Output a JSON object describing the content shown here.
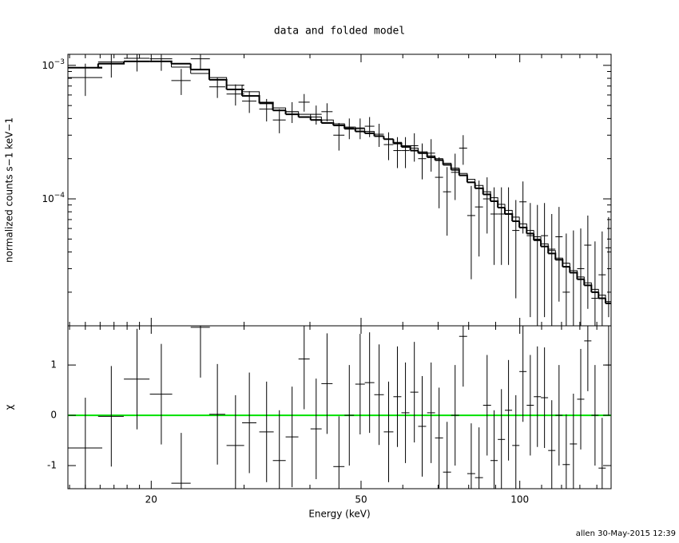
{
  "chart_data": {
    "type": "errorbar",
    "title": "data and folded model",
    "xlabel": "Energy (keV)",
    "ylabel": "normalized counts s−1 keV−1",
    "residual_ylabel": "χ",
    "footer": "allen 30-May-2015 12:39",
    "xscale": "log",
    "yscale": "log",
    "color": "#000000",
    "xlim": [
      13.9,
      149
    ],
    "xticks": [
      20,
      50,
      100
    ],
    "xminorticks": [
      14,
      15,
      16,
      17,
      18,
      19,
      30,
      40,
      60,
      70,
      80,
      90,
      110,
      120,
      130,
      140
    ],
    "ylim": [
      1.12e-05,
      0.00121
    ],
    "yticks": [
      {
        "value": 0.001,
        "label": "10−3"
      },
      {
        "value": 0.0001,
        "label": "10−4"
      }
    ],
    "yminorticks": [
      2e-05,
      3e-05,
      4e-05,
      5e-05,
      6e-05,
      7e-05,
      8e-05,
      9e-05,
      0.0002,
      0.0003,
      0.0004,
      0.0005,
      0.0006,
      0.0007,
      0.0008,
      0.0009
    ],
    "residual_ylim": [
      -1.46,
      1.78
    ],
    "residual_yticks": [
      1,
      0,
      -1
    ],
    "reference_line": {
      "value": 0,
      "color": "#00e000"
    },
    "x": [
      15.0,
      16.8,
      18.8,
      20.9,
      22.8,
      24.8,
      26.7,
      28.9,
      30.7,
      33.1,
      35.0,
      37.0,
      39.0,
      41.1,
      43.1,
      45.4,
      47.5,
      49.8,
      51.9,
      54.1,
      56.4,
      58.6,
      60.7,
      63.1,
      65.3,
      67.9,
      70.3,
      72.8,
      75.4,
      78.1,
      80.9,
      83.7,
      86.7,
      89.4,
      92.3,
      95.2,
      98.3,
      101.4,
      104.7,
      108,
      111.4,
      115,
      118.7,
      122.5,
      126.4,
      130.5,
      134.6,
      138.9,
      143.3,
      147.4
    ],
    "xerr": [
      1.15,
      0.94,
      1.05,
      1.02,
      0.96,
      1.04,
      0.93,
      1.11,
      0.96,
      1.04,
      0.98,
      1.03,
      0.95,
      1.0,
      1.05,
      1.1,
      0.99,
      1.04,
      1.09,
      1.13,
      1.18,
      1.02,
      1.06,
      1.1,
      1.14,
      1.18,
      1.23,
      1.27,
      1.32,
      1.36,
      1.41,
      1.46,
      1.51,
      1.4,
      1.45,
      1.5,
      1.54,
      1.59,
      1.64,
      1.7,
      1.75,
      1.8,
      1.86,
      1.92,
      1.98,
      2.05,
      2.11,
      2.18,
      2.25,
      2.0
    ],
    "values": [
      0.00081,
      0.00106,
      0.00113,
      0.00112,
      0.00077,
      0.00112,
      0.00069,
      0.00061,
      0.00054,
      0.00047,
      0.00039,
      0.00045,
      0.00053,
      0.00043,
      0.00045,
      0.0003,
      0.00034,
      0.00034,
      0.00035,
      0.000305,
      0.000255,
      0.00023,
      0.00023,
      0.00025,
      0.0002,
      0.00022,
      0.000145,
      0.000113,
      0.000158,
      0.00024,
      7.5e-05,
      8.7e-05,
      0.0001,
      7.7e-05,
      7.7e-05,
      7.7e-05,
      5.8e-05,
      9.5e-05,
      5.3e-05,
      5e-05,
      5.3e-05,
      4.2e-05,
      5.2e-05,
      2e-05,
      2.8e-05,
      3e-05,
      4.5e-05,
      1.8e-05,
      2.7e-05,
      4.3e-05
    ],
    "yerr": [
      0.00022,
      0.00025,
      0.00023,
      0.00021,
      0.00017,
      0.0002,
      0.00012,
      0.00011,
      0.0001,
      9e-05,
      8e-05,
      8e-05,
      8e-05,
      7e-05,
      7e-05,
      7e-05,
      6e-05,
      6e-05,
      6e-05,
      6e-05,
      6e-05,
      6e-05,
      6e-05,
      6e-05,
      6e-05,
      6e-05,
      6e-05,
      6e-05,
      6e-05,
      6e-05,
      5e-05,
      5e-05,
      4.5e-05,
      4.5e-05,
      4.5e-05,
      4.5e-05,
      4e-05,
      4e-05,
      4e-05,
      4e-05,
      4e-05,
      3.5e-05,
      3.5e-05,
      3.5e-05,
      3e-05,
      3e-05,
      3e-05,
      3e-05,
      3e-05,
      3e-05
    ],
    "models": [
      {
        "line_width": 2,
        "values": [
          0.00096,
          0.00103,
          0.00107,
          0.00107,
          0.00103,
          0.00093,
          0.00078,
          0.00066,
          0.00059,
          0.00052,
          0.00046,
          0.00043,
          0.00041,
          0.00039,
          0.00037,
          0.000355,
          0.000335,
          0.00032,
          0.00031,
          0.000295,
          0.00028,
          0.00026,
          0.000245,
          0.00023,
          0.00022,
          0.000205,
          0.000195,
          0.00018,
          0.000165,
          0.00015,
          0.000133,
          0.00012,
          0.000108,
          9.6e-05,
          8.6e-05,
          7.7e-05,
          6.8e-05,
          6.1e-05,
          5.5e-05,
          4.9e-05,
          4.4e-05,
          3.9e-05,
          3.5e-05,
          3.1e-05,
          2.8e-05,
          2.5e-05,
          2.25e-05,
          2e-05,
          1.8e-05,
          1.65e-05
        ]
      },
      {
        "line_width": 1,
        "values": [
          0.00096,
          0.00103,
          0.00107,
          0.00107,
          0.00097,
          0.00087,
          0.00081,
          0.00071,
          0.000635,
          0.00053,
          0.00048,
          0.00045,
          0.00043,
          0.00041,
          0.00039,
          0.000365,
          0.000345,
          0.000335,
          0.00032,
          0.000295,
          0.00028,
          0.000265,
          0.00025,
          0.00024,
          0.000225,
          0.00021,
          0.0002,
          0.000185,
          0.00017,
          0.000155,
          0.00014,
          0.000126,
          0.000113,
          0.000102,
          9.1e-05,
          8.2e-05,
          7.3e-05,
          6.5e-05,
          5.8e-05,
          5.2e-05,
          4.6e-05,
          4.1e-05,
          3.6e-05,
          3.3e-05,
          2.9e-05,
          2.6e-05,
          2.35e-05,
          2.1e-05,
          1.9e-05,
          1.7e-05
        ]
      }
    ],
    "residuals": [
      -0.65,
      -0.02,
      0.72,
      0.42,
      -1.35,
      1.75,
      0.02,
      -0.6,
      -0.15,
      -0.33,
      -0.9,
      -0.43,
      1.12,
      -0.27,
      0.63,
      -1.02,
      0,
      0.62,
      0.65,
      0.41,
      -0.33,
      0.37,
      0.05,
      0.46,
      -0.22,
      0.05,
      -0.45,
      -1.13,
      0,
      1.57,
      -1.16,
      -1.24,
      0.2,
      -0.9,
      -0.48,
      0.1,
      -0.6,
      0.87,
      0.2,
      0.37,
      0.35,
      -0.7,
      0,
      -0.98,
      -0.57,
      0.32,
      1.48,
      0,
      -1.05,
      1.0
    ],
    "residual_err": [
      1,
      1,
      1,
      1,
      1,
      1,
      1,
      1,
      1,
      1,
      1,
      1,
      1,
      1,
      1,
      1,
      1,
      1,
      1,
      1,
      1,
      1,
      1,
      1,
      1,
      1,
      1,
      1,
      1,
      1,
      1,
      1,
      1,
      1,
      1,
      1,
      1,
      1,
      1,
      1,
      1,
      1,
      1,
      1,
      1,
      1,
      1,
      1,
      1,
      1
    ]
  }
}
